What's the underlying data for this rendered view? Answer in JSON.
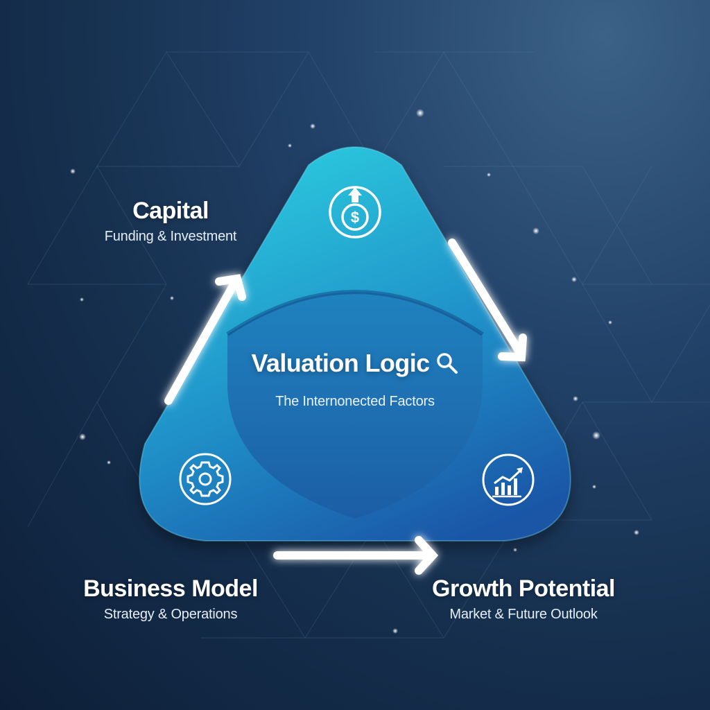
{
  "diagram": {
    "center": {
      "title": "Valuation Logic",
      "subtitle": "The Internonected Factors",
      "icon": "magnifier-icon"
    },
    "nodes": [
      {
        "id": "capital",
        "title": "Capital",
        "subtitle": "Funding & Investment",
        "icon": "dollar-coin-up-arrow-icon"
      },
      {
        "id": "business",
        "title": "Business Model",
        "subtitle": "Strategy & Operations",
        "icon": "gear-icon"
      },
      {
        "id": "growth",
        "title": "Growth Potential",
        "subtitle": "Market & Future Outlook",
        "icon": "growth-chart-icon"
      }
    ],
    "flow": [
      "business -> capital",
      "capital -> growth",
      "business -> growth"
    ]
  },
  "colors": {
    "background_top": "#3c6287",
    "background_bottom": "#0d1f38",
    "triangle_light": "#2cc6dd",
    "triangle_dark": "#1a55a6",
    "shield": "#1e6fb0",
    "text": "#ffffff"
  }
}
